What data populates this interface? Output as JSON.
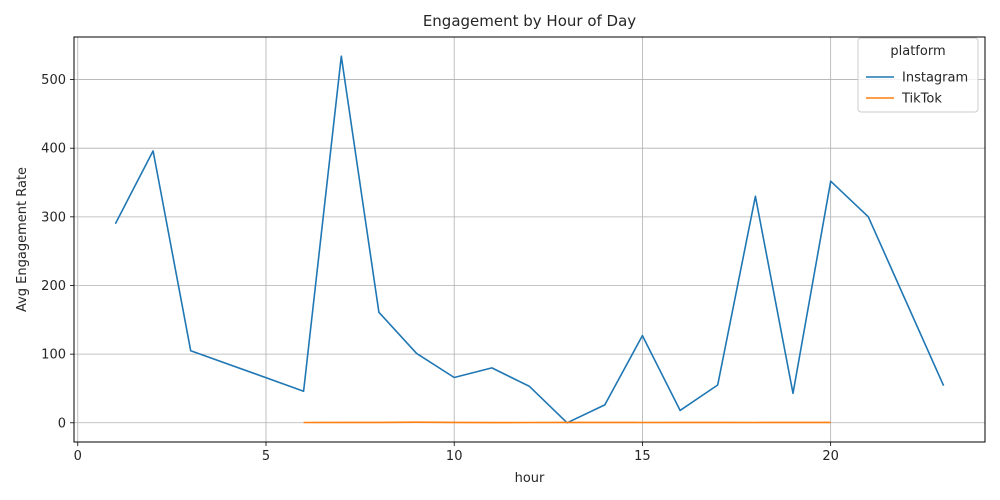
{
  "chart_data": {
    "type": "line",
    "title": "Engagement by Hour of Day",
    "xlabel": "hour",
    "ylabel": "Avg Engagement Rate",
    "xlim": [
      -0.1,
      24.1
    ],
    "ylim": [
      -28,
      562
    ],
    "xticks": [
      0,
      5,
      10,
      15,
      20
    ],
    "yticks": [
      0,
      100,
      200,
      300,
      400,
      500
    ],
    "grid": true,
    "legend": {
      "title": "platform",
      "position": "top-right"
    },
    "series": [
      {
        "name": "Instagram",
        "color": "#1f77b4",
        "x": [
          1,
          2,
          3,
          6,
          7,
          8,
          9,
          10,
          11,
          12,
          13,
          14,
          15,
          16,
          17,
          18,
          19,
          20,
          21,
          23
        ],
        "y": [
          290,
          396,
          105,
          46,
          534,
          161,
          101,
          66,
          80,
          53,
          0,
          26,
          127,
          18,
          55,
          330,
          43,
          352,
          300,
          54
        ]
      },
      {
        "name": "TikTok",
        "color": "#ff7f0e",
        "x": [
          6,
          7,
          8,
          9,
          10,
          11,
          12,
          13,
          14,
          15,
          16,
          17,
          18,
          19,
          20
        ],
        "y": [
          0.4,
          0.5,
          0.6,
          0.8,
          0.5,
          0.3,
          0.4,
          0.6,
          0.5,
          0.4,
          0.6,
          0.5,
          0.4,
          0.5,
          0.6
        ]
      }
    ]
  }
}
